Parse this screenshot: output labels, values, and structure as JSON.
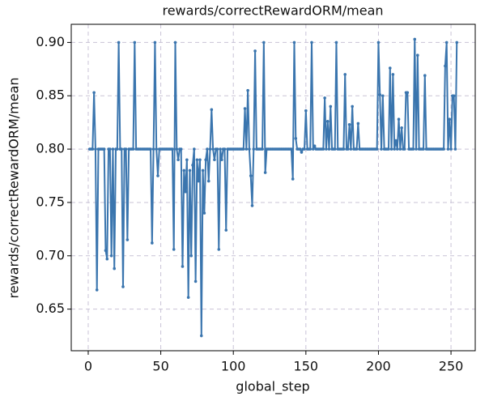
{
  "chart_data": {
    "type": "line",
    "title": "rewards/correctRewardORM/mean",
    "xlabel": "global_step",
    "ylabel": "rewards/correctRewardORM/mean",
    "x": [
      1,
      2,
      3,
      4,
      5,
      6,
      7,
      8,
      9,
      10,
      11,
      12,
      13,
      14,
      15,
      16,
      17,
      18,
      19,
      20,
      21,
      22,
      23,
      24,
      25,
      26,
      27,
      28,
      29,
      30,
      31,
      32,
      33,
      34,
      35,
      36,
      37,
      38,
      39,
      40,
      41,
      42,
      43,
      44,
      45,
      46,
      47,
      48,
      49,
      50,
      51,
      52,
      53,
      54,
      55,
      56,
      57,
      58,
      59,
      60,
      61,
      62,
      63,
      64,
      65,
      66,
      67,
      68,
      69,
      70,
      71,
      72,
      73,
      74,
      75,
      76,
      77,
      78,
      79,
      80,
      81,
      82,
      83,
      84,
      85,
      86,
      87,
      88,
      89,
      90,
      91,
      92,
      93,
      94,
      95,
      96,
      97,
      98,
      99,
      100,
      101,
      102,
      103,
      104,
      105,
      106,
      107,
      108,
      109,
      110,
      111,
      112,
      113,
      114,
      115,
      116,
      117,
      118,
      119,
      120,
      121,
      122,
      123,
      124,
      125,
      126,
      127,
      128,
      129,
      130,
      131,
      132,
      133,
      134,
      135,
      136,
      137,
      138,
      139,
      140,
      141,
      142,
      143,
      144,
      145,
      146,
      147,
      148,
      149,
      150,
      151,
      152,
      153,
      154,
      155,
      156,
      157,
      158,
      159,
      160,
      161,
      162,
      163,
      164,
      165,
      166,
      167,
      168,
      169,
      170,
      171,
      172,
      173,
      174,
      175,
      176,
      177,
      178,
      179,
      180,
      181,
      182,
      183,
      184,
      185,
      186,
      187,
      188,
      189,
      190,
      191,
      192,
      193,
      194,
      195,
      196,
      197,
      198,
      199,
      200,
      201,
      202,
      203,
      204,
      205,
      206,
      207,
      208,
      209,
      210,
      211,
      212,
      213,
      214,
      215,
      216,
      217,
      218,
      219,
      220,
      221,
      222,
      223,
      224,
      225,
      226,
      227,
      228,
      229,
      230,
      231,
      232,
      233,
      234,
      235,
      236,
      237,
      238,
      239,
      240,
      241,
      242,
      243,
      244,
      245,
      246,
      247,
      248,
      249,
      250,
      251,
      252,
      253,
      254
    ],
    "series": [
      {
        "name": "rewards/correctRewardORM/mean",
        "color": "#3a75ae",
        "values": [
          0.8,
          0.8,
          0.8,
          0.853,
          0.8,
          0.668,
          0.8,
          0.8,
          0.8,
          0.8,
          0.8,
          0.705,
          0.697,
          0.8,
          0.8,
          0.7,
          0.8,
          0.688,
          0.8,
          0.8,
          0.9,
          0.8,
          0.8,
          0.671,
          0.8,
          0.8,
          0.715,
          0.8,
          0.8,
          0.8,
          0.8,
          0.9,
          0.8,
          0.8,
          0.8,
          0.8,
          0.8,
          0.8,
          0.8,
          0.8,
          0.8,
          0.8,
          0.8,
          0.712,
          0.8,
          0.9,
          0.8,
          0.775,
          0.8,
          0.8,
          0.8,
          0.8,
          0.8,
          0.8,
          0.8,
          0.8,
          0.8,
          0.8,
          0.706,
          0.9,
          0.8,
          0.79,
          0.8,
          0.8,
          0.69,
          0.78,
          0.76,
          0.79,
          0.661,
          0.78,
          0.7,
          0.785,
          0.8,
          0.676,
          0.79,
          0.77,
          0.79,
          0.625,
          0.78,
          0.74,
          0.79,
          0.8,
          0.77,
          0.8,
          0.837,
          0.8,
          0.79,
          0.8,
          0.8,
          0.706,
          0.8,
          0.79,
          0.8,
          0.8,
          0.724,
          0.8,
          0.8,
          0.8,
          0.8,
          0.8,
          0.8,
          0.8,
          0.8,
          0.8,
          0.8,
          0.8,
          0.8,
          0.838,
          0.8,
          0.855,
          0.8,
          0.775,
          0.747,
          0.8,
          0.892,
          0.8,
          0.8,
          0.8,
          0.8,
          0.8,
          0.9,
          0.778,
          0.8,
          0.8,
          0.8,
          0.8,
          0.8,
          0.8,
          0.8,
          0.8,
          0.8,
          0.8,
          0.8,
          0.8,
          0.8,
          0.8,
          0.8,
          0.8,
          0.8,
          0.8,
          0.772,
          0.9,
          0.81,
          0.8,
          0.8,
          0.8,
          0.797,
          0.8,
          0.8,
          0.836,
          0.8,
          0.8,
          0.8,
          0.9,
          0.8,
          0.803,
          0.8,
          0.8,
          0.8,
          0.8,
          0.8,
          0.8,
          0.848,
          0.8,
          0.826,
          0.8,
          0.84,
          0.8,
          0.8,
          0.8,
          0.9,
          0.8,
          0.8,
          0.8,
          0.8,
          0.8,
          0.87,
          0.8,
          0.8,
          0.823,
          0.8,
          0.84,
          0.8,
          0.8,
          0.8,
          0.824,
          0.8,
          0.8,
          0.8,
          0.8,
          0.8,
          0.8,
          0.8,
          0.8,
          0.8,
          0.8,
          0.8,
          0.8,
          0.8,
          0.9,
          0.851,
          0.8,
          0.85,
          0.8,
          0.8,
          0.8,
          0.8,
          0.876,
          0.8,
          0.87,
          0.8,
          0.808,
          0.8,
          0.828,
          0.8,
          0.82,
          0.8,
          0.8,
          0.853,
          0.853,
          0.8,
          0.8,
          0.8,
          0.8,
          0.903,
          0.8,
          0.888,
          0.8,
          0.8,
          0.8,
          0.8,
          0.869,
          0.8,
          0.8,
          0.8,
          0.8,
          0.8,
          0.8,
          0.8,
          0.8,
          0.8,
          0.8,
          0.8,
          0.8,
          0.8,
          0.878,
          0.9,
          0.8,
          0.828,
          0.8,
          0.85,
          0.85,
          0.8,
          0.9
        ]
      }
    ],
    "xlim": [
      -11.7,
      266.7
    ],
    "xticks": [
      0,
      50,
      100,
      150,
      200,
      250
    ],
    "ylim": [
      0.611,
      0.917
    ],
    "yticks": [
      0.65,
      {
        "value": 0.7,
        "label": "0.70"
      },
      0.75,
      {
        "value": 0.8,
        "label": "0.80"
      },
      0.85,
      {
        "value": 0.9,
        "label": "0.90"
      }
    ],
    "grid": true
  }
}
